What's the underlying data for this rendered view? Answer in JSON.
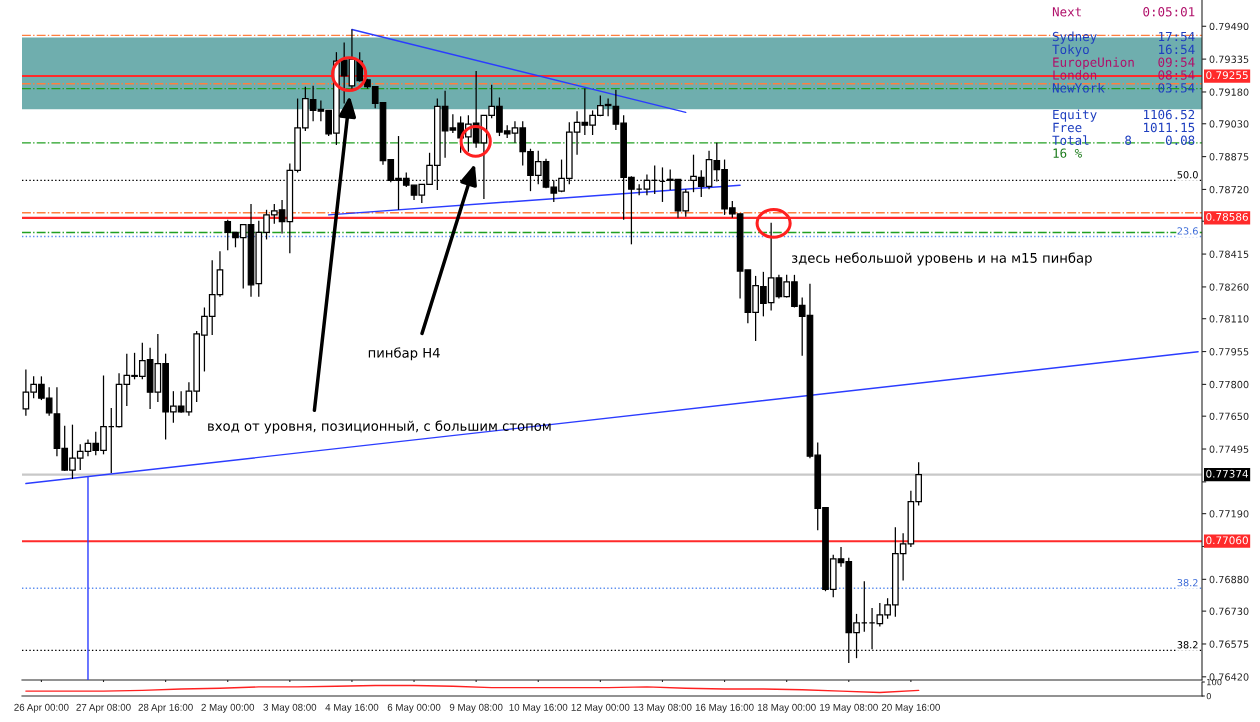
{
  "chart_data": [
    {
      "type": "candlestick",
      "categories": [
        null,
        null,
        "26 Apr 00:00",
        null,
        null,
        null,
        null,
        null,
        null,
        null,
        "27 Apr 08:00",
        null,
        null,
        null,
        null,
        null,
        null,
        null,
        "28 Apr 16:00",
        null,
        null,
        null,
        null,
        null,
        null,
        null,
        "2 May 00:00",
        null,
        null,
        null,
        null,
        null,
        null,
        null,
        "3 May 08:00",
        null,
        null,
        null,
        null,
        null,
        null,
        null,
        "4 May 16:00",
        null,
        null,
        null,
        null,
        null,
        null,
        null,
        "6 May 00:00",
        null,
        null,
        null,
        null,
        null,
        null,
        null,
        "9 May 08:00",
        null,
        null,
        null,
        null,
        null,
        null,
        null,
        "10 May 16:00",
        null,
        null,
        null,
        null,
        null,
        null,
        null,
        "12 May 00:00",
        null,
        null,
        null,
        null,
        null,
        null,
        null,
        "13 May 08:00",
        null,
        null,
        null,
        null,
        null,
        null,
        null,
        "16 May 16:00",
        null,
        null,
        null,
        null,
        null,
        null,
        null,
        "18 May 00:00",
        null,
        null,
        null,
        null,
        null,
        null,
        null,
        "19 May 08:00",
        null,
        null,
        null,
        null,
        null,
        null,
        null,
        "20 May 16:00",
        null,
        null,
        null,
        null,
        null,
        null,
        null,
        null,
        null,
        null,
        null,
        null,
        null,
        null,
        null,
        null,
        null,
        null,
        null,
        null,
        null,
        null,
        null,
        null,
        null,
        null,
        null,
        null,
        null,
        null,
        null,
        null,
        null,
        null,
        null,
        null,
        null
      ],
      "ohlc": [
        [
          0.77684,
          0.7787,
          0.77652,
          0.77763
        ],
        [
          0.77763,
          0.77838,
          0.77735,
          0.778
        ],
        [
          0.778,
          0.77838,
          0.77726,
          0.77735
        ],
        [
          0.77735,
          0.77787,
          0.77652,
          0.77666
        ],
        [
          0.77661,
          0.77787,
          0.77461,
          0.77498
        ],
        [
          0.77498,
          0.77605,
          0.77391,
          0.77396
        ],
        [
          0.77396,
          0.7761,
          0.77354,
          0.77452
        ],
        [
          0.77452,
          0.77517,
          0.77396,
          0.77484
        ],
        [
          0.77484,
          0.7754,
          0.77461,
          0.77522
        ],
        [
          0.77522,
          0.77577,
          0.77466,
          0.77489
        ],
        [
          0.77489,
          0.77842,
          0.7747,
          0.77601
        ],
        [
          0.77601,
          0.77689,
          0.77382,
          0.77601
        ],
        [
          0.77601,
          0.77852,
          0.77596,
          0.778
        ],
        [
          0.778,
          0.77945,
          0.77698,
          0.77842
        ],
        [
          0.77838,
          0.77949,
          0.77824,
          0.77842
        ],
        [
          0.77838,
          0.77996,
          0.77824,
          0.77912
        ],
        [
          0.77917,
          0.77973,
          0.77684,
          0.77763
        ],
        [
          0.77763,
          0.78038,
          0.77717,
          0.77898
        ],
        [
          0.77898,
          0.77945,
          0.7754,
          0.7767
        ],
        [
          0.7767,
          0.77768,
          0.77619,
          0.77698
        ],
        [
          0.77698,
          0.77768,
          0.77666,
          0.7767
        ],
        [
          0.7767,
          0.7781,
          0.77652,
          0.77768
        ],
        [
          0.77768,
          0.78052,
          0.77717,
          0.78038
        ],
        [
          0.78033,
          0.78163,
          0.77861,
          0.78121
        ],
        [
          0.78121,
          0.78386,
          0.78033,
          0.78224
        ],
        [
          0.78224,
          0.78428,
          0.78214,
          0.7834
        ],
        [
          0.78568,
          0.78577,
          0.78433,
          0.78517
        ],
        [
          0.78517,
          0.78517,
          0.78447,
          0.78493
        ],
        [
          0.78493,
          0.78554,
          0.78252,
          0.78554
        ],
        [
          0.78554,
          0.78651,
          0.78214,
          0.7827
        ],
        [
          0.78275,
          0.78572,
          0.78214,
          0.78517
        ],
        [
          0.78517,
          0.78624,
          0.78484,
          0.786
        ],
        [
          0.786,
          0.78651,
          0.78558,
          0.78619
        ],
        [
          0.78624,
          0.7867,
          0.78512,
          0.78568
        ],
        [
          0.78568,
          0.78842,
          0.78419,
          0.7881
        ],
        [
          0.7881,
          0.79149,
          0.788,
          0.7901
        ],
        [
          0.7901,
          0.79205,
          0.78996,
          0.79149
        ],
        [
          0.79144,
          0.79209,
          0.79042,
          0.79093
        ],
        [
          0.79098,
          0.7914,
          0.79042,
          0.79089
        ],
        [
          0.79093,
          0.79093,
          0.78972,
          0.78982
        ],
        [
          0.78986,
          0.79368,
          0.7893,
          0.79326
        ],
        [
          0.7933,
          0.79414,
          0.79126,
          0.79256
        ],
        [
          0.79209,
          0.79475,
          0.79186,
          0.79335
        ],
        [
          0.79326,
          0.79368,
          0.79228,
          0.79233
        ],
        [
          0.79237,
          0.79242,
          0.79196,
          0.79205
        ],
        [
          0.79205,
          0.79205,
          0.79103,
          0.79126
        ],
        [
          0.7913,
          0.7913,
          0.78837,
          0.78856
        ],
        [
          0.78861,
          0.78861,
          0.78754,
          0.78763
        ],
        [
          0.78772,
          0.78972,
          0.78624,
          0.78763
        ],
        [
          0.78772,
          0.788,
          0.78731,
          0.7874
        ],
        [
          0.7874,
          0.7874,
          0.7867,
          0.78693
        ],
        [
          0.78693,
          0.78744,
          0.78656,
          0.78744
        ],
        [
          0.78744,
          0.78893,
          0.78744,
          0.78833
        ],
        [
          0.78833,
          0.79149,
          0.78717,
          0.79112
        ],
        [
          0.79112,
          0.79186,
          0.7887,
          0.78996
        ],
        [
          0.7901,
          0.79075,
          0.78986,
          0.79
        ],
        [
          0.79033,
          0.79065,
          0.78893,
          0.78963
        ],
        [
          0.78968,
          0.7907,
          0.78898,
          0.79028
        ],
        [
          0.79033,
          0.79279,
          0.78917,
          0.7894
        ],
        [
          0.7894,
          0.7907,
          0.78675,
          0.7907
        ],
        [
          0.7907,
          0.79214,
          0.79056,
          0.79112
        ],
        [
          0.79112,
          0.79154,
          0.78972,
          0.78991
        ],
        [
          0.78996,
          0.79023,
          0.78963,
          0.78982
        ],
        [
          0.78986,
          0.79042,
          0.7894,
          0.7901
        ],
        [
          0.7901,
          0.79042,
          0.78833,
          0.78898
        ],
        [
          0.78898,
          0.78912,
          0.78712,
          0.78786
        ],
        [
          0.78786,
          0.78903,
          0.78744,
          0.78851
        ],
        [
          0.78851,
          0.78865,
          0.78726,
          0.78731
        ],
        [
          0.78731,
          0.78763,
          0.78661,
          0.78703
        ],
        [
          0.78712,
          0.78861,
          0.78707,
          0.78772
        ],
        [
          0.78772,
          0.79037,
          0.78744,
          0.78991
        ],
        [
          0.78991,
          0.79089,
          0.78884,
          0.79037
        ],
        [
          0.79037,
          0.79196,
          0.78977,
          0.79023
        ],
        [
          0.79023,
          0.79093,
          0.78977,
          0.7907
        ],
        [
          0.7907,
          0.79163,
          0.79065,
          0.79116
        ],
        [
          0.79121,
          0.79149,
          0.79065,
          0.79116
        ],
        [
          0.79112,
          0.79191,
          0.79,
          0.79028
        ],
        [
          0.79033,
          0.7907,
          0.78577,
          0.78777
        ],
        [
          0.78777,
          0.78782,
          0.78461,
          0.78721
        ],
        [
          0.78721,
          0.78744,
          0.78693,
          0.78721
        ],
        [
          0.78721,
          0.78791,
          0.78693,
          0.78763
        ],
        [
          0.78763,
          0.78833,
          0.78698,
          0.78763
        ],
        [
          0.78758,
          0.78824,
          0.78661,
          0.78758
        ],
        [
          0.78768,
          0.78814,
          0.78717,
          0.78763
        ],
        [
          0.78768,
          0.78768,
          0.78586,
          0.78619
        ],
        [
          0.78619,
          0.78721,
          0.78591,
          0.78707
        ],
        [
          0.78763,
          0.78884,
          0.78707,
          0.78782
        ],
        [
          0.78777,
          0.7881,
          0.78684,
          0.78735
        ],
        [
          0.78735,
          0.78903,
          0.78721,
          0.78861
        ],
        [
          0.78856,
          0.7894,
          0.78758,
          0.78814
        ],
        [
          0.78814,
          0.78861,
          0.786,
          0.78628
        ],
        [
          0.78633,
          0.78665,
          0.78586,
          0.78605
        ],
        [
          0.78605,
          0.78605,
          0.78205,
          0.78335
        ],
        [
          0.7834,
          0.7834,
          0.78089,
          0.7814
        ],
        [
          0.7814,
          0.78312,
          0.78005,
          0.78266
        ],
        [
          0.78261,
          0.78331,
          0.78121,
          0.78182
        ],
        [
          0.78186,
          0.78563,
          0.78149,
          0.78303
        ],
        [
          0.78303,
          0.78317,
          0.78205,
          0.78214
        ],
        [
          0.78214,
          0.78317,
          0.7821,
          0.78284
        ],
        [
          0.78284,
          0.78317,
          0.78163,
          0.78168
        ],
        [
          0.78173,
          0.7821,
          0.77935,
          0.78121
        ],
        [
          0.78126,
          0.78275,
          0.77452,
          0.77461
        ],
        [
          0.77466,
          0.77526,
          0.77112,
          0.77215
        ],
        [
          0.77219,
          0.77219,
          0.76824,
          0.76833
        ],
        [
          0.76833,
          0.76996,
          0.76796,
          0.76977
        ],
        [
          0.76977,
          0.77033,
          0.7694,
          0.76959
        ],
        [
          0.76964,
          0.76982,
          0.76485,
          0.76629
        ],
        [
          0.76629,
          0.76717,
          0.76508,
          0.76675
        ],
        [
          0.76675,
          0.76871,
          0.76633,
          0.76675
        ],
        [
          0.76675,
          0.76745,
          0.7655,
          0.76675
        ],
        [
          0.76671,
          0.76768,
          0.76657,
          0.76712
        ],
        [
          0.76712,
          0.76791,
          0.76694,
          0.76759
        ],
        [
          0.76759,
          0.77126,
          0.76703,
          0.77001
        ],
        [
          0.77001,
          0.77098,
          0.76875,
          0.77047
        ],
        [
          0.77047,
          0.77298,
          0.77033,
          0.77247
        ],
        [
          0.77247,
          0.77433,
          0.77229,
          0.77374
        ],
        null,
        null,
        null,
        null,
        null,
        null,
        null,
        null,
        null,
        null,
        null,
        null,
        null,
        null,
        null,
        null,
        null,
        null,
        null,
        null,
        null,
        null,
        null,
        null,
        null,
        null,
        null,
        null,
        null,
        null,
        null,
        null,
        null,
        null,
        null,
        null
      ],
      "series": [
        {
          "type": "line",
          "color": "#2b3cff",
          "values": [
            0.77332,
            null,
            null,
            null,
            null,
            null,
            null,
            null,
            null,
            null,
            null,
            null,
            null,
            null,
            null,
            null,
            null,
            null,
            null,
            null,
            null,
            null,
            null,
            null,
            null,
            null,
            null,
            null,
            null,
            null,
            null,
            null,
            null,
            null,
            null,
            null,
            null,
            null,
            null,
            null,
            null,
            null,
            null,
            null,
            null,
            null,
            null,
            null,
            null,
            null,
            null,
            null,
            null,
            null,
            null,
            null,
            null,
            null,
            null,
            null,
            null,
            null,
            null,
            null,
            null,
            null,
            null,
            null,
            null,
            null,
            null,
            null,
            null,
            null,
            null,
            null,
            null,
            null,
            null,
            null,
            null,
            null,
            null,
            null,
            null,
            null,
            null,
            null,
            null,
            null,
            null,
            null,
            null,
            null,
            null,
            null,
            null,
            null,
            null,
            null,
            null,
            null,
            null,
            null,
            null,
            null,
            null,
            null,
            null,
            null,
            null,
            null,
            null,
            null,
            null,
            null,
            null,
            null,
            null,
            null,
            null,
            null,
            null,
            null,
            null,
            null,
            null,
            null,
            null,
            null,
            null,
            null,
            null,
            null,
            null,
            null,
            null,
            null,
            null,
            null,
            null,
            null,
            null,
            null,
            null,
            null,
            null,
            null,
            null,
            null,
            null,
            0.77954
          ]
        },
        {
          "type": "line",
          "color": "#2b3cff",
          "values": [
            null,
            null,
            null,
            null,
            null,
            null,
            null,
            null,
            null,
            null,
            null,
            null,
            null,
            null,
            null,
            null,
            null,
            null,
            null,
            null,
            null,
            null,
            null,
            null,
            null,
            null,
            null,
            null,
            null,
            null,
            null,
            null,
            null,
            null,
            null,
            null,
            null,
            null,
            null,
            null,
            null,
            null,
            0.79475,
            null,
            null,
            null,
            null,
            null,
            null,
            null,
            null,
            null,
            null,
            null,
            null,
            null,
            null,
            null,
            null,
            null,
            null,
            null,
            null,
            null,
            null,
            null,
            null,
            null,
            null,
            null,
            null,
            null,
            null,
            null,
            null,
            null,
            null,
            null,
            null,
            null,
            null,
            null,
            null,
            null,
            null,
            0.79084,
            null,
            null,
            null,
            null,
            null,
            null,
            null,
            null,
            null,
            null,
            null,
            null,
            null,
            null,
            null,
            null,
            null,
            null,
            null,
            null,
            null,
            null,
            null,
            null,
            null,
            null,
            null,
            null,
            null,
            null,
            null,
            null,
            null,
            null,
            null,
            null,
            null,
            null,
            null,
            null,
            null,
            null,
            null,
            null,
            null,
            null,
            null,
            null,
            null,
            null,
            null,
            null,
            null,
            null,
            null,
            null,
            null,
            null,
            null,
            null,
            null,
            null,
            null,
            null,
            null,
            null
          ]
        },
        {
          "type": "line",
          "color": "#2b3cff",
          "values": [
            null,
            null,
            null,
            null,
            null,
            null,
            null,
            null,
            null,
            null,
            null,
            null,
            null,
            null,
            null,
            null,
            null,
            null,
            null,
            null,
            null,
            null,
            null,
            null,
            null,
            null,
            null,
            null,
            null,
            null,
            null,
            null,
            null,
            null,
            null,
            null,
            null,
            null,
            null,
            0.786,
            null,
            null,
            null,
            null,
            null,
            null,
            null,
            null,
            null,
            null,
            null,
            null,
            null,
            null,
            null,
            null,
            null,
            null,
            null,
            null,
            null,
            null,
            null,
            null,
            null,
            null,
            null,
            null,
            null,
            null,
            null,
            null,
            null,
            null,
            null,
            null,
            null,
            null,
            null,
            null,
            null,
            null,
            null,
            null,
            null,
            null,
            null,
            null,
            null,
            null,
            null,
            null,
            0.7874,
            null,
            null,
            null,
            null,
            null,
            null,
            null,
            null,
            null,
            null,
            null,
            null,
            null,
            null,
            null,
            null,
            null,
            null,
            null,
            null,
            null,
            null,
            null,
            null,
            null,
            null,
            null,
            null,
            null,
            null,
            null,
            null,
            null,
            null,
            null,
            null,
            null,
            null,
            null,
            null,
            null,
            null,
            null,
            null,
            null,
            null,
            null,
            null,
            null,
            null,
            null,
            null,
            null,
            null,
            null,
            null,
            null,
            null,
            null
          ]
        }
      ],
      "ylim": [
        0.76405,
        0.79614
      ],
      "yticks": [
        {
          "value": 0.7949,
          "label": "0.79490"
        },
        {
          "value": 0.79335,
          "label": "0.79335"
        },
        {
          "value": 0.7918,
          "label": "0.79180"
        },
        {
          "value": 0.7903,
          "label": "0.79030"
        },
        {
          "value": 0.78875,
          "label": "0.78875"
        },
        {
          "value": 0.7872,
          "label": "0.78720"
        },
        {
          "value": 0.7857,
          "label": null
        },
        {
          "value": 0.78415,
          "label": "0.78415"
        },
        {
          "value": 0.7826,
          "label": "0.78260"
        },
        {
          "value": 0.7811,
          "label": "0.78110"
        },
        {
          "value": 0.77955,
          "label": "0.77955"
        },
        {
          "value": 0.778,
          "label": "0.77800"
        },
        {
          "value": 0.7765,
          "label": "0.77650"
        },
        {
          "value": 0.77495,
          "label": "0.77495"
        },
        {
          "value": 0.7734,
          "label": null
        },
        {
          "value": 0.7719,
          "label": "0.77190"
        },
        {
          "value": 0.77035,
          "label": null
        },
        {
          "value": 0.7688,
          "label": "0.76880"
        },
        {
          "value": 0.7673,
          "label": "0.76730"
        },
        {
          "value": 0.76575,
          "label": "0.76575"
        },
        {
          "value": 0.7642,
          "label": "0.76420"
        }
      ],
      "bands": [
        {
          "axis": "y",
          "from": 0.79098,
          "to": 0.79437,
          "color": "#6faeae"
        }
      ],
      "ref_lines": [
        {
          "axis": "y",
          "value": 0.79447,
          "color": "#ff7f3f",
          "line_style": "dashdot"
        },
        {
          "axis": "y",
          "value": 0.79219,
          "color": "#ff7f3f",
          "line_style": "dashdot"
        },
        {
          "axis": "y",
          "value": 0.7861,
          "color": "#ff7f3f",
          "line_style": "dashdot"
        },
        {
          "axis": "y",
          "value": 0.79196,
          "color": "#22a022",
          "line_style": "dashdot"
        },
        {
          "axis": "y",
          "value": 0.7894,
          "color": "#22a022",
          "line_style": "dashdot"
        },
        {
          "axis": "y",
          "value": 0.78517,
          "color": "#22a022",
          "line_style": "dashdot"
        },
        {
          "axis": "y",
          "value": 0.79255,
          "label": "0.79255",
          "color": "#ff2a2a",
          "line_style": "solid"
        },
        {
          "axis": "y",
          "value": 0.78586,
          "label": "0.78586",
          "color": "#ff2a2a",
          "line_style": "solid"
        },
        {
          "axis": "y",
          "value": 0.7706,
          "label": "0.77060",
          "color": "#ff2a2a",
          "line_style": "solid"
        },
        {
          "axis": "y",
          "value": 0.77374,
          "label": "0.77374",
          "color": "#c8c8c8",
          "line_style": "solid"
        },
        {
          "axis": "y",
          "value": 0.78763,
          "color": "#000000",
          "line_style": "dotted"
        },
        {
          "axis": "y",
          "value": 0.76545,
          "color": "#000000",
          "line_style": "dotted"
        },
        {
          "axis": "y",
          "value": 0.78498,
          "color": "#5b8def",
          "line_style": "dotted"
        },
        {
          "axis": "y",
          "value": 0.76838,
          "color": "#5b8def",
          "line_style": "dotted"
        }
      ],
      "annotations": [
        "вход от уровня, позиционный, с большим стопом",
        "пинбар H4",
        "здесь небольшой уровень и на м15 пинбар",
        "Next",
        "0:05:01",
        "Sydney",
        "17:54",
        "Tokyo",
        "16:54",
        "EuropeUnion",
        "09:54",
        "London",
        "08:54",
        "NewYork",
        "03:54",
        "Equity",
        "1106.52",
        "Free",
        "1011.15",
        "Total",
        "8",
        "0.08",
        "16 %",
        {
          "text": "50.0",
          "y": 0.78763
        },
        {
          "text": "38.2",
          "y": 0.76545
        },
        {
          "text": "23.6",
          "y": 0.78498
        },
        {
          "text": "38.2",
          "y": 0.76838
        }
      ]
    },
    {
      "type": "line",
      "categories": [
        null,
        null,
        null,
        null,
        null,
        null,
        null,
        null,
        null,
        null,
        null,
        null,
        null,
        null,
        null,
        null,
        null,
        null,
        null,
        null,
        null,
        null,
        null,
        null
      ],
      "series": [
        {
          "color": "#ff2020",
          "values": [
            35,
            35,
            35,
            40,
            50,
            55,
            65,
            65,
            70,
            75,
            75,
            70,
            60,
            60,
            60,
            60,
            65,
            55,
            50,
            50,
            45,
            35,
            25,
            40
          ]
        }
      ],
      "ylim": [
        0,
        100
      ],
      "yticks": [
        0,
        100
      ],
      "tick_labels": "y"
    }
  ]
}
